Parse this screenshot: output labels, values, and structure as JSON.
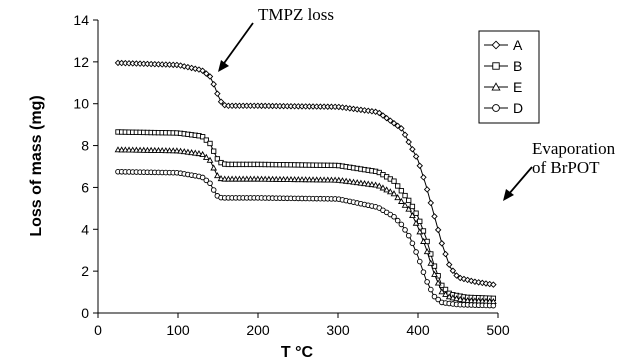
{
  "chart_data": {
    "type": "line",
    "xlabel": "T °C",
    "ylabel": "Loss of mass (mg)",
    "xlim": [
      0,
      500
    ],
    "ylim": [
      0,
      14
    ],
    "xticks": [
      "0",
      "100",
      "200",
      "300",
      "400",
      "500"
    ],
    "yticks": [
      "0",
      "2",
      "4",
      "6",
      "8",
      "10",
      "12",
      "14"
    ],
    "grid": false,
    "legend_position": "top-right",
    "annotations": [
      "TMPZ loss",
      "Evaporation",
      "of BrPOT"
    ],
    "series": [
      {
        "name": "A",
        "marker": "diamond",
        "x": [
          25,
          100,
          130,
          140,
          145,
          150,
          155,
          160,
          200,
          300,
          350,
          380,
          400,
          410,
          420,
          430,
          440,
          450,
          470,
          495
        ],
        "y": [
          11.95,
          11.85,
          11.6,
          11.3,
          10.9,
          10.4,
          10.0,
          9.9,
          9.9,
          9.85,
          9.6,
          8.8,
          7.3,
          6.1,
          4.7,
          3.3,
          2.2,
          1.7,
          1.5,
          1.35
        ]
      },
      {
        "name": "B",
        "marker": "square",
        "x": [
          25,
          100,
          130,
          140,
          145,
          150,
          155,
          160,
          200,
          300,
          350,
          370,
          390,
          400,
          410,
          420,
          430,
          440,
          460,
          495
        ],
        "y": [
          8.65,
          8.6,
          8.45,
          8.1,
          7.7,
          7.3,
          7.15,
          7.1,
          7.1,
          7.05,
          6.75,
          6.3,
          5.3,
          4.6,
          3.6,
          2.3,
          1.3,
          0.9,
          0.75,
          0.7
        ]
      },
      {
        "name": "E",
        "marker": "triangle",
        "x": [
          25,
          100,
          130,
          140,
          145,
          150,
          155,
          160,
          200,
          300,
          350,
          370,
          390,
          400,
          410,
          420,
          430,
          440,
          460,
          495
        ],
        "y": [
          7.8,
          7.75,
          7.6,
          7.3,
          6.9,
          6.5,
          6.4,
          6.4,
          6.4,
          6.35,
          6.1,
          5.7,
          4.9,
          4.1,
          3.1,
          1.9,
          1.0,
          0.75,
          0.6,
          0.55
        ]
      },
      {
        "name": "D",
        "marker": "circle",
        "x": [
          25,
          100,
          130,
          140,
          145,
          150,
          155,
          160,
          200,
          300,
          350,
          370,
          380,
          390,
          400,
          410,
          420,
          430,
          450,
          495
        ],
        "y": [
          6.75,
          6.7,
          6.5,
          6.2,
          5.85,
          5.55,
          5.5,
          5.5,
          5.5,
          5.45,
          5.05,
          4.6,
          4.2,
          3.6,
          2.7,
          1.6,
          0.8,
          0.5,
          0.4,
          0.35
        ]
      }
    ]
  }
}
